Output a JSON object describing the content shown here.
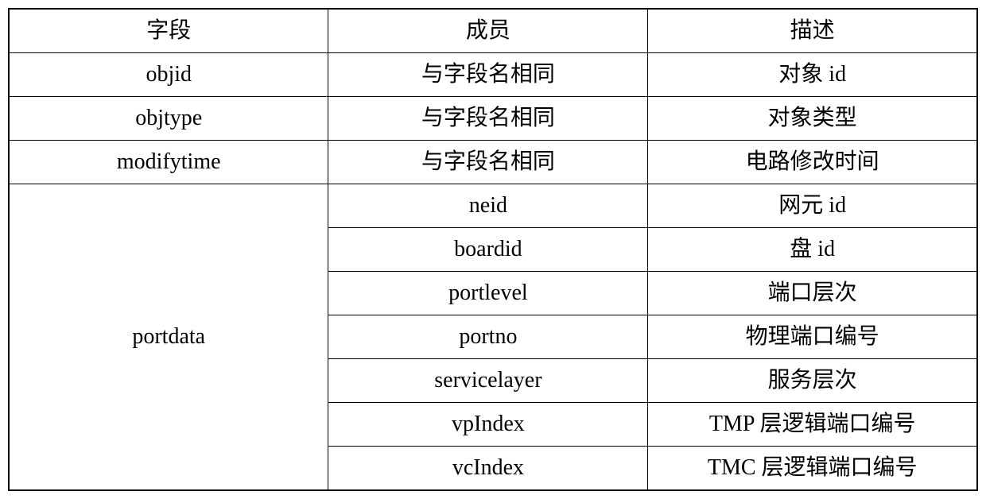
{
  "table": {
    "headers": {
      "field": "字段",
      "member": "成员",
      "description": "描述"
    },
    "rows": [
      {
        "field": "objid",
        "member": "与字段名相同",
        "description": "对象 id"
      },
      {
        "field": "objtype",
        "member": "与字段名相同",
        "description": "对象类型"
      },
      {
        "field": "modifytime",
        "member": "与字段名相同",
        "description": "电路修改时间"
      }
    ],
    "merged": {
      "field": "portdata",
      "sub_rows": [
        {
          "member": "neid",
          "description": "网元 id"
        },
        {
          "member": "boardid",
          "description": "盘 id"
        },
        {
          "member": "portlevel",
          "description": "端口层次"
        },
        {
          "member": "portno",
          "description": "物理端口编号"
        },
        {
          "member": "servicelayer",
          "description": "服务层次"
        },
        {
          "member": "vpIndex",
          "description": "TMP 层逻辑端口编号"
        },
        {
          "member": "vcIndex",
          "description": "TMC 层逻辑端口编号"
        }
      ]
    },
    "border_color": "#000000",
    "background_color": "#ffffff",
    "font_size": 28,
    "merged_rowspan": 7
  }
}
